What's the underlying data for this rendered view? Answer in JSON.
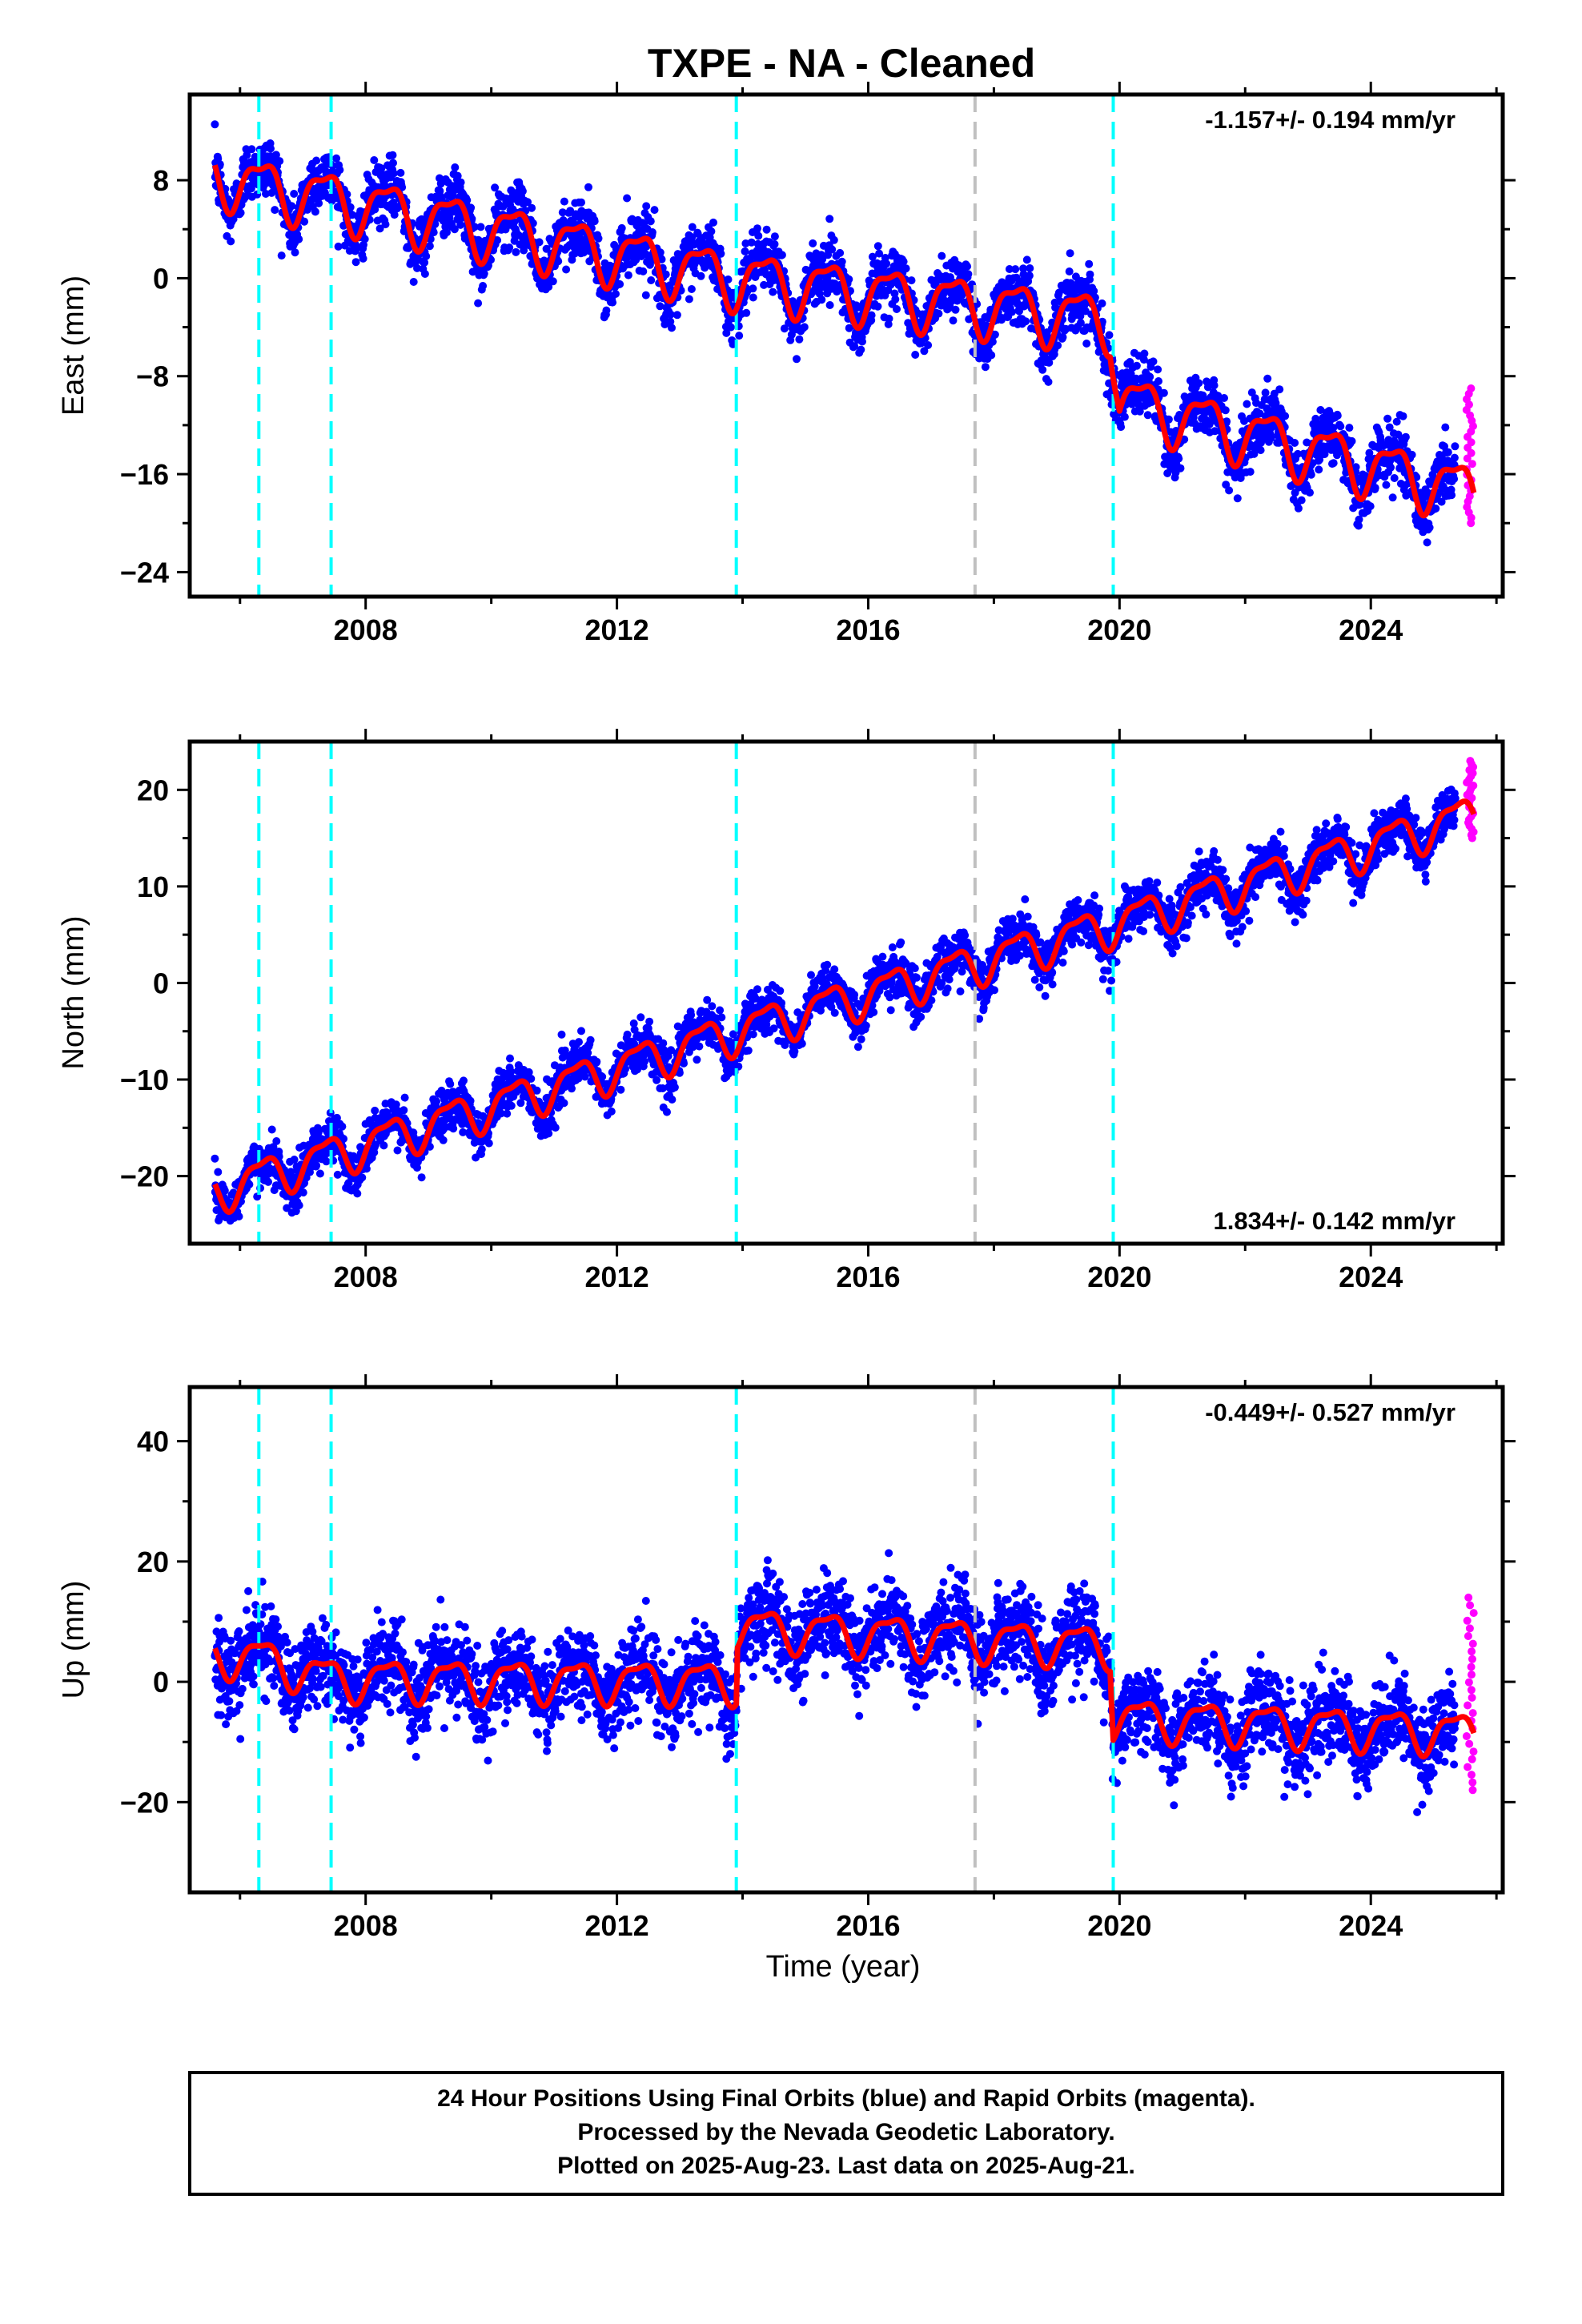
{
  "title": "TXPE  - NA - Cleaned",
  "xlabel": "Time (year)",
  "footer": {
    "line1": "24 Hour Positions Using Final Orbits (blue) and Rapid Orbits (magenta).",
    "line2": "Processed by the Nevada Geodetic Laboratory.",
    "line3": "Plotted on 2025-Aug-23. Last data on 2025-Aug-21."
  },
  "colors": {
    "final_orbits": "#0000ff",
    "rapid_orbits": "#ff00ff",
    "model": "#ff0000",
    "equipment_change": "#00ffff",
    "other_event": "#c0c0c0"
  },
  "chart_data": [
    {
      "type": "scatter",
      "component": "East",
      "ylabel": "East (mm)",
      "rate_text": "-1.157+/- 0.194 mm/yr",
      "rate_position": "top-right",
      "xlim": [
        2005.2,
        2026.1
      ],
      "ylim": [
        -26,
        15
      ],
      "x_ticks": [
        2008,
        2012,
        2016,
        2020,
        2024
      ],
      "x_tick_labels": [
        "2008",
        "2012",
        "2016",
        "2020",
        "2024"
      ],
      "y_ticks": [
        8,
        0,
        -8,
        -16,
        -24
      ],
      "y_tick_labels": [
        "8",
        "0",
        "−8",
        "−16",
        "−24"
      ],
      "data_start": 2005.6,
      "final_end": 2025.35,
      "data_end": 2025.64,
      "model_knots": [
        [
          2005.6,
          8.5
        ],
        [
          2006.3,
          7.5
        ],
        [
          2007.45,
          6.5
        ],
        [
          2013.9,
          0.0
        ],
        [
          2017.7,
          -2.2
        ],
        [
          2019.85,
          -3.5
        ],
        [
          2020.0,
          -10.0
        ],
        [
          2025.64,
          -17.5
        ]
      ],
      "seasonal_amplitude_mm": 2.2,
      "scatter_mm": 1.2,
      "rapid_range_mm": [
        -20,
        -9
      ],
      "equipment_changes": [
        2006.3,
        2007.45,
        2013.9,
        2019.9
      ],
      "other_events": [
        2017.7
      ]
    },
    {
      "type": "scatter",
      "component": "North",
      "ylabel": "North (mm)",
      "rate_text": "1.834+/- 0.142 mm/yr",
      "rate_position": "bottom-right",
      "xlim": [
        2005.2,
        2026.1
      ],
      "ylim": [
        -27,
        25
      ],
      "x_ticks": [
        2008,
        2012,
        2016,
        2020,
        2024
      ],
      "x_tick_labels": [
        "2008",
        "2012",
        "2016",
        "2020",
        "2024"
      ],
      "y_ticks": [
        20,
        10,
        0,
        -10,
        -20
      ],
      "y_tick_labels": [
        "20",
        "10",
        "0",
        "−10",
        "−20"
      ],
      "data_start": 2005.6,
      "final_end": 2025.35,
      "data_end": 2025.64,
      "model_knots": [
        [
          2005.6,
          -21.5
        ],
        [
          2013.9,
          -5.0
        ],
        [
          2019.85,
          6.0
        ],
        [
          2025.64,
          17.5
        ]
      ],
      "seasonal_amplitude_mm": 2.0,
      "scatter_mm": 1.2,
      "rapid_range_mm": [
        15,
        23
      ],
      "equipment_changes": [
        2006.3,
        2007.45,
        2013.9,
        2019.9
      ],
      "other_events": [
        2017.7
      ]
    },
    {
      "type": "scatter",
      "component": "Up",
      "ylabel": "Up (mm)",
      "rate_text": "-0.449+/- 0.527 mm/yr",
      "rate_position": "top-right",
      "xlim": [
        2005.2,
        2026.1
      ],
      "ylim": [
        -35,
        49
      ],
      "x_ticks": [
        2008,
        2012,
        2016,
        2020,
        2024
      ],
      "x_tick_labels": [
        "2008",
        "2012",
        "2016",
        "2020",
        "2024"
      ],
      "y_ticks": [
        40,
        20,
        0,
        -20
      ],
      "y_tick_labels": [
        "40",
        "20",
        "0",
        "−20"
      ],
      "data_start": 2005.6,
      "final_end": 2025.35,
      "data_end": 2025.64,
      "model_knots": [
        [
          2005.6,
          4.5
        ],
        [
          2006.3,
          4.0
        ],
        [
          2007.45,
          0.5
        ],
        [
          2013.9,
          0.0
        ],
        [
          2013.92,
          9.0
        ],
        [
          2019.85,
          6.0
        ],
        [
          2019.9,
          -6.0
        ],
        [
          2025.64,
          -8.5
        ]
      ],
      "seasonal_amplitude_mm": 3.2,
      "scatter_mm": 3.5,
      "rapid_range_mm": [
        -18,
        14
      ],
      "equipment_changes": [
        2006.3,
        2007.45,
        2013.9,
        2019.9
      ],
      "other_events": [
        2017.7
      ]
    }
  ]
}
